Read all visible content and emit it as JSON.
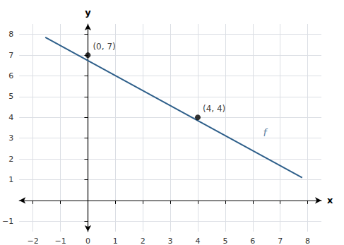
{
  "chart_data": {
    "type": "line",
    "xlabel": "x",
    "ylabel": "y",
    "xlim": [
      -2.5,
      8.5
    ],
    "ylim": [
      -1.5,
      8.5
    ],
    "xticks": [
      {
        "value": -2,
        "label": "−2"
      },
      {
        "value": -1,
        "label": "−1"
      },
      0,
      1,
      2,
      3,
      4,
      5,
      6,
      7,
      8
    ],
    "yticks": [
      {
        "value": -1,
        "label": "−1"
      },
      1,
      2,
      3,
      4,
      5,
      6,
      7,
      8
    ],
    "grid": true,
    "series": [
      {
        "type": "line",
        "color": "#2E5F8A",
        "line_style": "solid",
        "x": [
          -1.55,
          7.8
        ],
        "values": [
          7.86,
          1.1
        ]
      },
      {
        "type": "scatter",
        "color": "#000000",
        "marker": "circle",
        "x": [
          0,
          4
        ],
        "values": [
          7,
          4
        ]
      }
    ],
    "annotations": [
      {
        "text": "(0, 7)",
        "x": 0,
        "y": 7
      },
      {
        "text": "(4, 4)",
        "x": 4,
        "y": 4
      },
      {
        "text": "f",
        "x": 6.2,
        "y": 2.85,
        "color": "#2E5F8A"
      }
    ]
  }
}
